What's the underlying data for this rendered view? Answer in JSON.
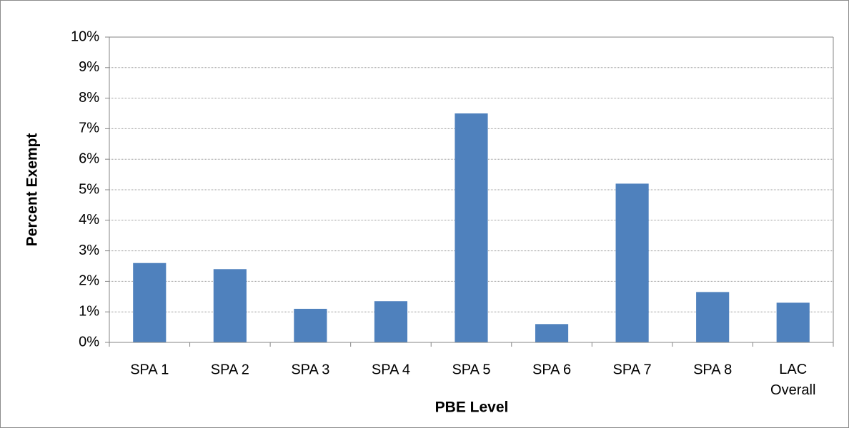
{
  "chart_data": {
    "type": "bar",
    "x_label": "PBE Level",
    "y_label": "Percent Exempt",
    "categories": [
      "SPA 1",
      "SPA 2",
      "SPA 3",
      "SPA 4",
      "SPA 5",
      "SPA 6",
      "SPA 7",
      "SPA 8",
      "LAC Overall"
    ],
    "values": [
      2.6,
      2.4,
      1.1,
      1.35,
      7.5,
      0.6,
      5.2,
      1.65,
      1.3
    ],
    "color": "#4f81bd",
    "ylim": [
      0,
      10
    ],
    "yticks": [
      {
        "value": 0,
        "label": "0%"
      },
      {
        "value": 1,
        "label": "1%"
      },
      {
        "value": 2,
        "label": "2%"
      },
      {
        "value": 3,
        "label": "3%"
      },
      {
        "value": 4,
        "label": "4%"
      },
      {
        "value": 5,
        "label": "5%"
      },
      {
        "value": 6,
        "label": "6%"
      },
      {
        "value": 7,
        "label": "7%"
      },
      {
        "value": 8,
        "label": "8%"
      },
      {
        "value": 9,
        "label": "9%"
      },
      {
        "value": 10,
        "label": "10%"
      }
    ],
    "grid": true
  }
}
